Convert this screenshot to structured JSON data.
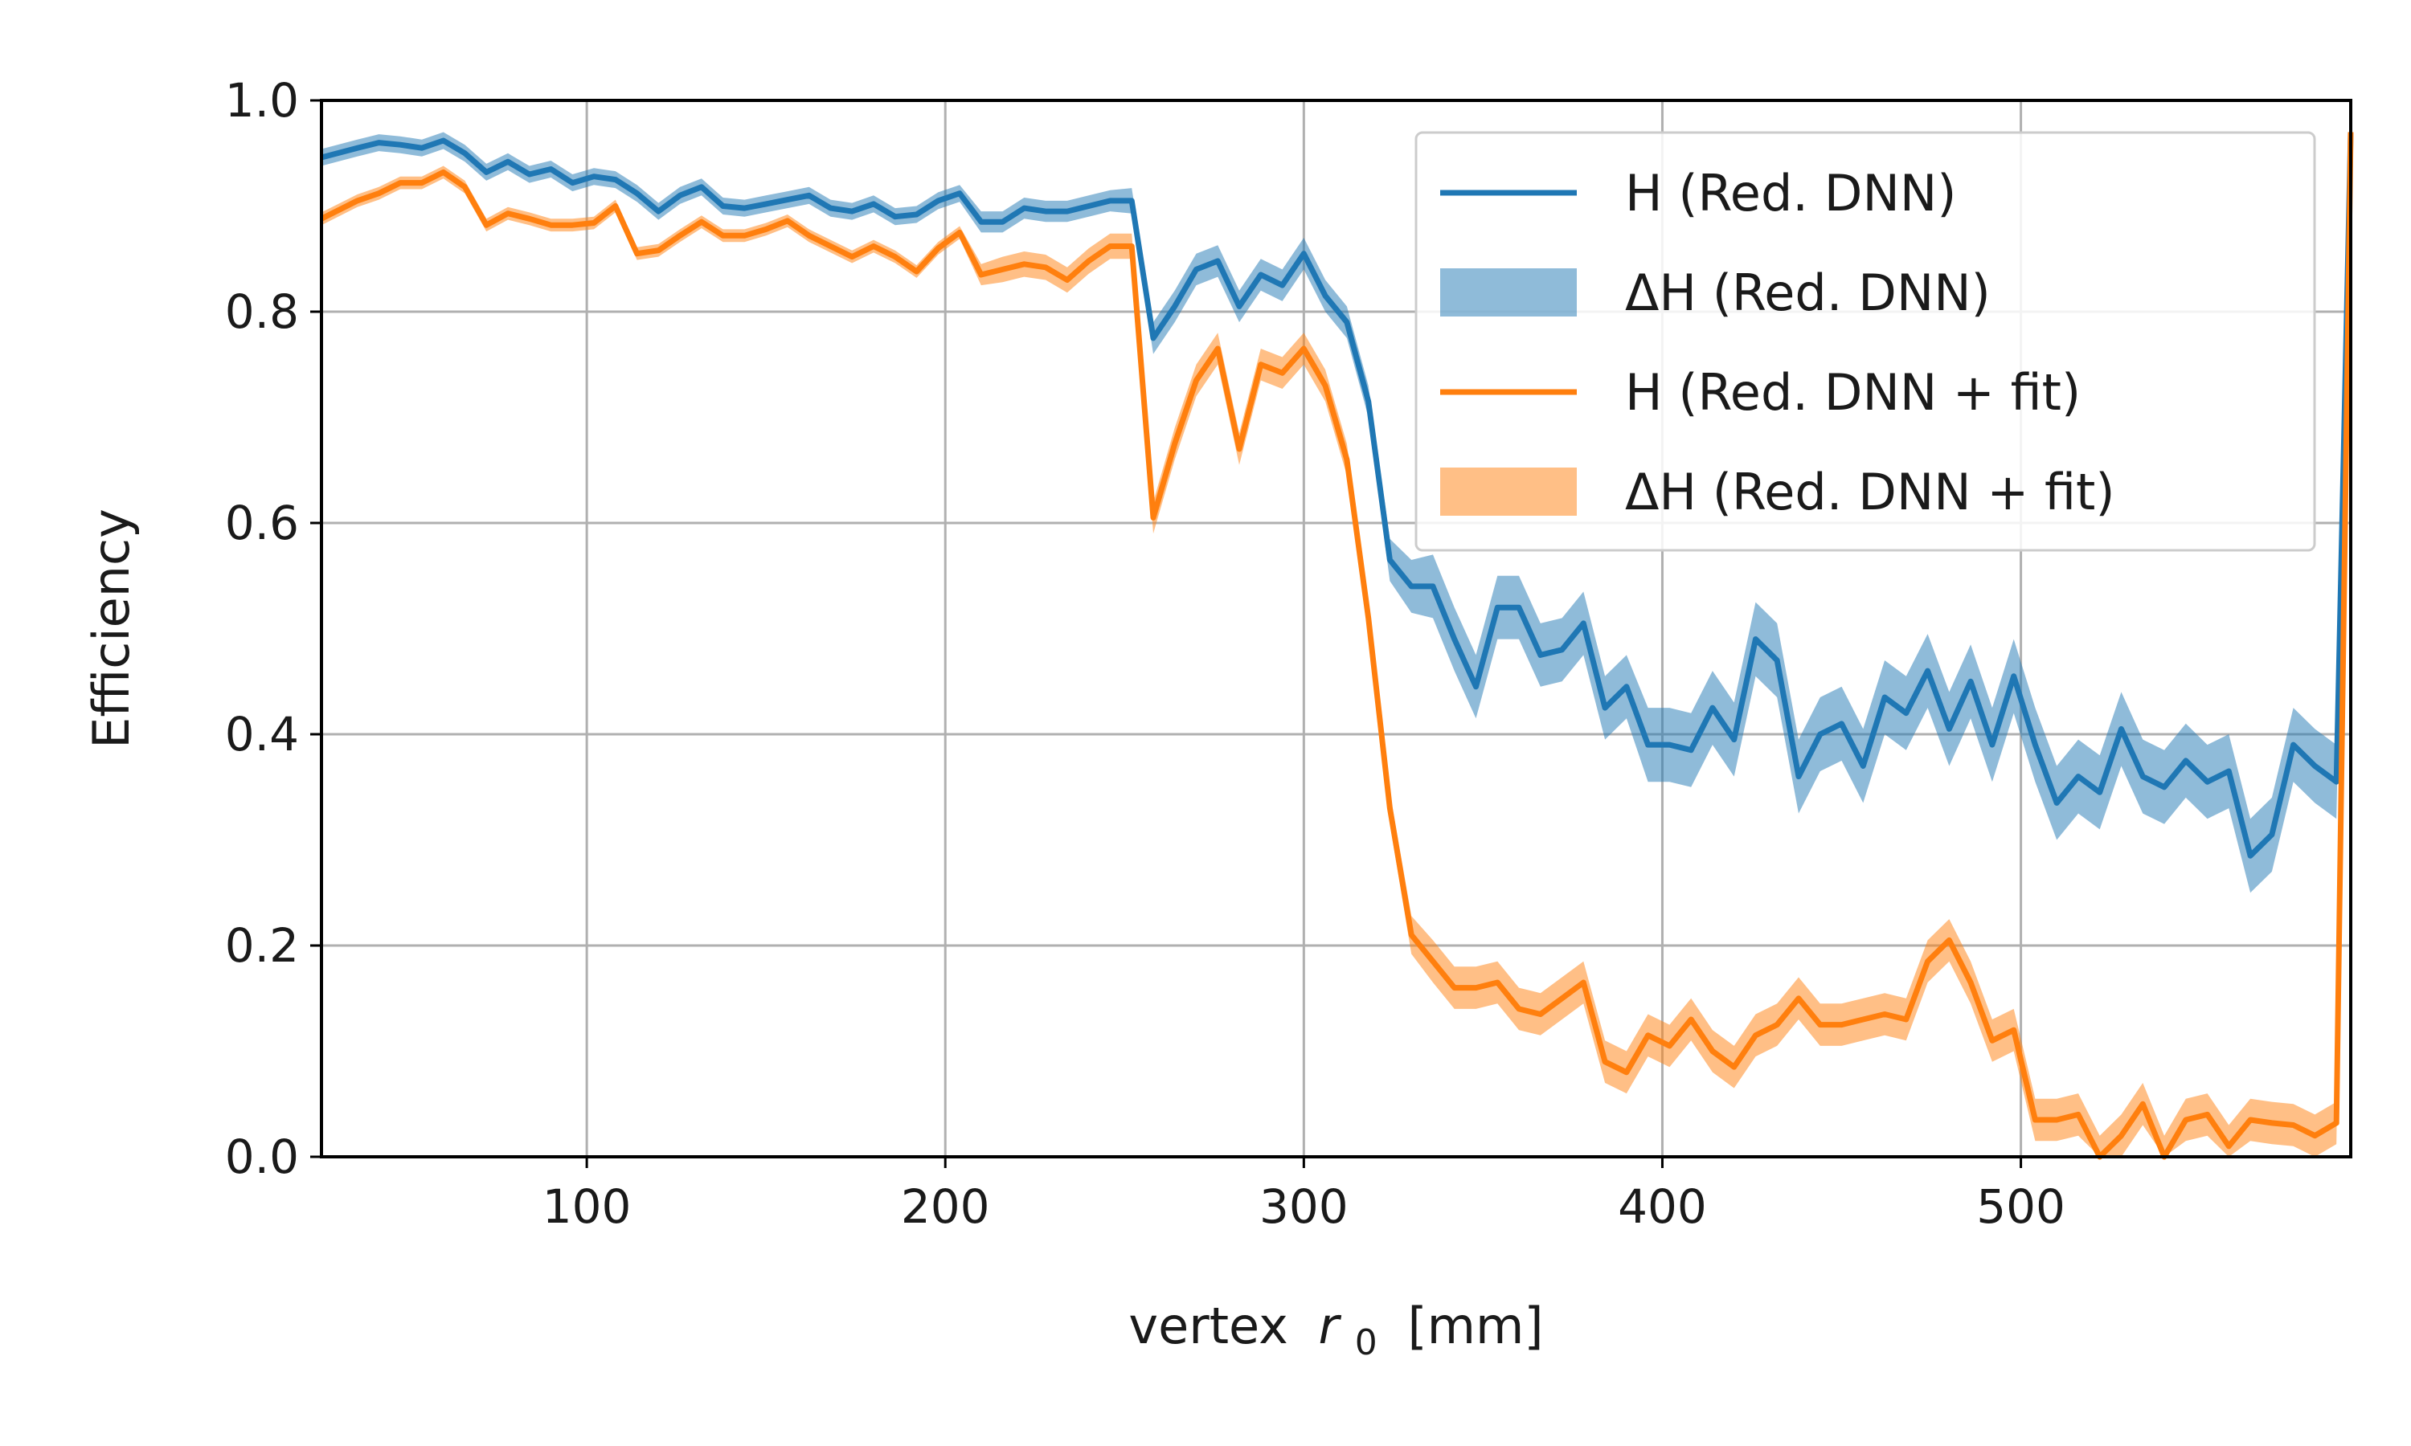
{
  "chart_data": {
    "type": "line",
    "xlabel": "vertex",
    "xlabel_symbol": "r",
    "xlabel_subscript": "0",
    "xlabel_unit": "[mm]",
    "ylabel": "Efficiency",
    "xlim": [
      26,
      592
    ],
    "ylim": [
      0,
      1
    ],
    "xticks": [
      100,
      200,
      300,
      400,
      500
    ],
    "xtick_labels": [
      "100",
      "200",
      "300",
      "400",
      "500"
    ],
    "yticks": [
      0,
      0.2,
      0.4,
      0.6,
      0.8,
      1.0
    ],
    "ytick_labels": [
      "0.0",
      "0.2",
      "0.4",
      "0.6",
      "0.8",
      "1.0"
    ],
    "grid": true,
    "legend_position": "top-right",
    "x": [
      26,
      36,
      42,
      48,
      54,
      60,
      66,
      72,
      78,
      84,
      90,
      96,
      102,
      108,
      114,
      120,
      126,
      132,
      138,
      144,
      150,
      156,
      162,
      168,
      174,
      180,
      186,
      192,
      198,
      204,
      210,
      216,
      222,
      228,
      234,
      240,
      246,
      252,
      258,
      264,
      270,
      276,
      282,
      288,
      294,
      300,
      306,
      312,
      318,
      324,
      330,
      336,
      342,
      348,
      354,
      360,
      366,
      372,
      378,
      384,
      390,
      396,
      402,
      408,
      414,
      420,
      426,
      432,
      438,
      444,
      450,
      456,
      462,
      468,
      474,
      480,
      486,
      492,
      498,
      504,
      510,
      516,
      522,
      528,
      534,
      540,
      546,
      552,
      558,
      564,
      570,
      576,
      582,
      588,
      592
    ],
    "series": [
      {
        "name": "H (Red. DNN)",
        "color": "#1f77b4",
        "band_name": "ΔH (Red. DNN)",
        "band_color": "#1f77b4",
        "values": [
          0.946,
          0.955,
          0.96,
          0.958,
          0.955,
          0.962,
          0.95,
          0.932,
          0.942,
          0.93,
          0.935,
          0.922,
          0.928,
          0.925,
          0.912,
          0.895,
          0.91,
          0.918,
          0.9,
          0.898,
          0.902,
          0.906,
          0.91,
          0.898,
          0.895,
          0.902,
          0.89,
          0.892,
          0.905,
          0.912,
          0.885,
          0.885,
          0.898,
          0.895,
          0.895,
          0.9,
          0.905,
          0.905,
          0.775,
          0.805,
          0.84,
          0.848,
          0.805,
          0.835,
          0.825,
          0.855,
          0.815,
          0.79,
          0.715,
          0.565,
          0.54,
          0.54,
          0.49,
          0.445,
          0.52,
          0.52,
          0.475,
          0.48,
          0.505,
          0.425,
          0.445,
          0.39,
          0.39,
          0.385,
          0.425,
          0.395,
          0.49,
          0.47,
          0.36,
          0.4,
          0.41,
          0.37,
          0.435,
          0.42,
          0.46,
          0.405,
          0.45,
          0.39,
          0.455,
          0.39,
          0.335,
          0.36,
          0.345,
          0.405,
          0.36,
          0.35,
          0.375,
          0.355,
          0.365,
          0.285,
          0.305,
          0.39,
          0.37,
          0.355,
          0.97
        ],
        "band_halfwidth": [
          0.008,
          0.008,
          0.008,
          0.008,
          0.008,
          0.008,
          0.008,
          0.008,
          0.008,
          0.008,
          0.008,
          0.008,
          0.008,
          0.008,
          0.008,
          0.008,
          0.008,
          0.008,
          0.008,
          0.008,
          0.008,
          0.008,
          0.008,
          0.008,
          0.008,
          0.008,
          0.008,
          0.008,
          0.008,
          0.008,
          0.01,
          0.01,
          0.01,
          0.01,
          0.01,
          0.01,
          0.01,
          0.012,
          0.015,
          0.015,
          0.015,
          0.015,
          0.015,
          0.015,
          0.015,
          0.015,
          0.015,
          0.015,
          0.015,
          0.02,
          0.025,
          0.03,
          0.03,
          0.03,
          0.03,
          0.03,
          0.03,
          0.03,
          0.03,
          0.03,
          0.03,
          0.035,
          0.035,
          0.035,
          0.035,
          0.035,
          0.035,
          0.035,
          0.035,
          0.035,
          0.035,
          0.035,
          0.035,
          0.035,
          0.035,
          0.035,
          0.035,
          0.035,
          0.035,
          0.035,
          0.035,
          0.035,
          0.035,
          0.035,
          0.035,
          0.035,
          0.035,
          0.035,
          0.035,
          0.035,
          0.035,
          0.035,
          0.035,
          0.035,
          0.01
        ]
      },
      {
        "name": "H (Red. DNN + fit)",
        "color": "#ff7f0e",
        "band_name": "ΔH (Red. DNN + fit)",
        "band_color": "#ff7f0e",
        "values": [
          0.888,
          0.905,
          0.912,
          0.922,
          0.922,
          0.932,
          0.918,
          0.882,
          0.893,
          0.888,
          0.882,
          0.882,
          0.884,
          0.9,
          0.855,
          0.858,
          0.872,
          0.885,
          0.872,
          0.872,
          0.878,
          0.886,
          0.872,
          0.862,
          0.852,
          0.862,
          0.852,
          0.838,
          0.86,
          0.875,
          0.835,
          0.84,
          0.845,
          0.842,
          0.83,
          0.848,
          0.862,
          0.862,
          0.605,
          0.675,
          0.735,
          0.765,
          0.67,
          0.75,
          0.742,
          0.765,
          0.73,
          0.66,
          0.51,
          0.33,
          0.21,
          0.185,
          0.16,
          0.16,
          0.165,
          0.14,
          0.135,
          0.15,
          0.165,
          0.09,
          0.08,
          0.115,
          0.105,
          0.13,
          0.1,
          0.085,
          0.115,
          0.125,
          0.15,
          0.125,
          0.125,
          0.13,
          0.135,
          0.13,
          0.185,
          0.205,
          0.165,
          0.11,
          0.12,
          0.035,
          0.035,
          0.04,
          0.0,
          0.02,
          0.05,
          0.0,
          0.035,
          0.04,
          0.01,
          0.035,
          0.032,
          0.03,
          0.02,
          0.032,
          0.97
        ],
        "band_halfwidth": [
          0.006,
          0.006,
          0.006,
          0.006,
          0.006,
          0.006,
          0.006,
          0.006,
          0.006,
          0.006,
          0.006,
          0.006,
          0.006,
          0.006,
          0.006,
          0.006,
          0.006,
          0.006,
          0.006,
          0.006,
          0.006,
          0.006,
          0.006,
          0.006,
          0.006,
          0.006,
          0.006,
          0.006,
          0.006,
          0.006,
          0.01,
          0.012,
          0.012,
          0.012,
          0.012,
          0.012,
          0.012,
          0.012,
          0.015,
          0.015,
          0.015,
          0.015,
          0.015,
          0.015,
          0.015,
          0.015,
          0.015,
          0.015,
          0.015,
          0.015,
          0.018,
          0.02,
          0.02,
          0.02,
          0.02,
          0.02,
          0.02,
          0.02,
          0.02,
          0.02,
          0.02,
          0.02,
          0.02,
          0.02,
          0.02,
          0.02,
          0.02,
          0.02,
          0.02,
          0.02,
          0.02,
          0.02,
          0.02,
          0.02,
          0.02,
          0.02,
          0.02,
          0.02,
          0.02,
          0.02,
          0.02,
          0.02,
          0.02,
          0.02,
          0.02,
          0.02,
          0.02,
          0.02,
          0.02,
          0.02,
          0.02,
          0.02,
          0.02,
          0.02,
          0.008
        ]
      }
    ]
  }
}
